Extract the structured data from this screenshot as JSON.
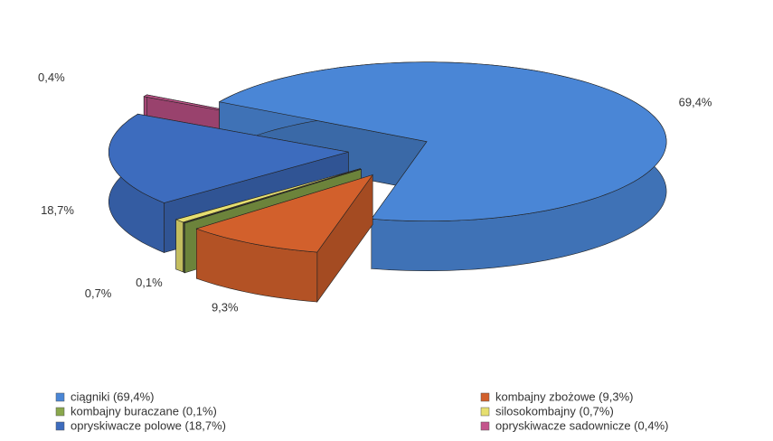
{
  "chart_data": {
    "type": "pie3d",
    "categories": [
      "ciągniki (69,4%)",
      "kombajny zbożowe (9,3%)",
      "kombajny buraczane (0,1%)",
      "silosokombajny (0,7%)",
      "opryskiwacze polowe (18,7%)",
      "opryskiwacze sadownicze (0,4%)"
    ],
    "values": [
      69.4,
      9.3,
      0.1,
      0.7,
      18.7,
      0.4
    ],
    "value_labels": [
      "69,4%",
      "9,3%",
      "0,1%",
      "0,7%",
      "18,7%",
      "0,4%"
    ],
    "colors": [
      "#4a86d6",
      "#d2602c",
      "#8aa84c",
      "#e6df70",
      "#3d6cbe",
      "#c4548c"
    ],
    "legend": "bottom"
  }
}
